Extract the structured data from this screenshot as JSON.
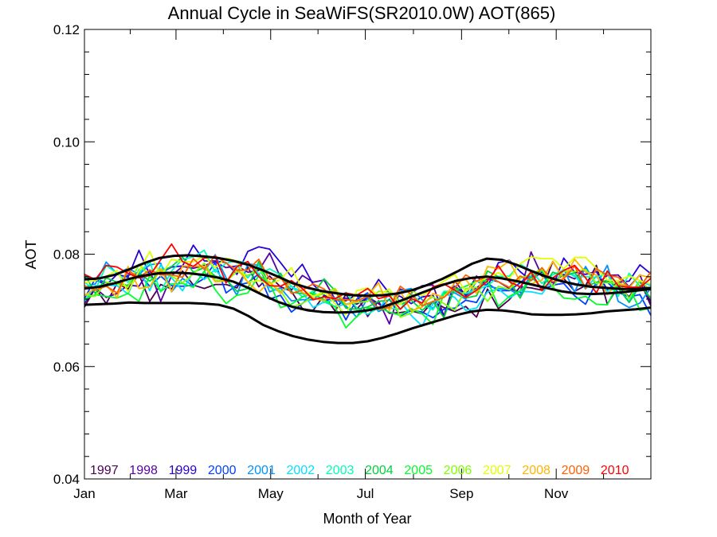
{
  "chart_data": {
    "type": "line",
    "title": "Annual Cycle in SeaWiFS(SR2010.0W) AOT(865)",
    "xlabel": "Month of Year",
    "ylabel": "AOT",
    "xlim": [
      1,
      366
    ],
    "ylim": [
      0.04,
      0.12
    ],
    "x_ticks": [
      {
        "day": 1,
        "label": "Jan"
      },
      {
        "day": 60,
        "label": "Mar"
      },
      {
        "day": 121,
        "label": "May"
      },
      {
        "day": 182,
        "label": "Jul"
      },
      {
        "day": 244,
        "label": "Sep"
      },
      {
        "day": 305,
        "label": "Nov"
      }
    ],
    "y_ticks": [
      {
        "value": 0.04,
        "label": "0.04"
      },
      {
        "value": 0.06,
        "label": "0.06"
      },
      {
        "value": 0.08,
        "label": "0.08"
      },
      {
        "value": 0.1,
        "label": "0.10"
      },
      {
        "value": 0.12,
        "label": "0.12"
      }
    ],
    "grid": false,
    "legend_position": "bottom",
    "series": [
      {
        "name": "1997",
        "color": "#4b0055",
        "values": [
          0.0706,
          0.074,
          0.0712,
          0.0748,
          0.0738,
          0.0764,
          0.0716,
          0.0746,
          0.0738,
          0.077,
          0.0745,
          0.0739,
          0.0746,
          0.0746,
          0.074,
          0.0777,
          0.0742,
          0.0761,
          0.0742,
          0.0734,
          0.0703,
          0.07,
          0.0727,
          0.0699,
          0.0728,
          0.0702,
          0.0724,
          0.0712,
          0.0695,
          0.0696,
          0.0699,
          0.0694,
          0.0716,
          0.0705,
          0.0698,
          0.0707,
          0.0688,
          0.0738,
          0.0703,
          0.0719,
          0.0742,
          0.074,
          0.0736,
          0.0787,
          0.0757,
          0.0734,
          0.0744,
          0.078,
          0.0711,
          0.0743,
          0.0724,
          0.0753,
          0.0708
        ]
      },
      {
        "name": "1998",
        "color": "#5a00a0",
        "values": [
          0.0712,
          0.074,
          0.0723,
          0.073,
          0.0745,
          0.0743,
          0.0772,
          0.0716,
          0.0762,
          0.0778,
          0.0775,
          0.078,
          0.0786,
          0.0776,
          0.0779,
          0.0768,
          0.0771,
          0.0802,
          0.0759,
          0.0736,
          0.0762,
          0.075,
          0.0754,
          0.072,
          0.0717,
          0.0728,
          0.0689,
          0.0717,
          0.0676,
          0.0738,
          0.0731,
          0.0744,
          0.0745,
          0.069,
          0.0753,
          0.0726,
          0.074,
          0.0756,
          0.0751,
          0.0739,
          0.0732,
          0.0804,
          0.0761,
          0.0749,
          0.0764,
          0.0756,
          0.0776,
          0.0746,
          0.0762,
          0.0763,
          0.0742,
          0.0763,
          0.0713
        ]
      },
      {
        "name": "1999",
        "color": "#2a00d6",
        "values": [
          0.0759,
          0.0755,
          0.0745,
          0.0764,
          0.0759,
          0.0807,
          0.0763,
          0.0767,
          0.0777,
          0.0779,
          0.0816,
          0.0788,
          0.0788,
          0.0785,
          0.0764,
          0.0805,
          0.0813,
          0.0809,
          0.0785,
          0.076,
          0.0782,
          0.0746,
          0.0727,
          0.0717,
          0.0722,
          0.0711,
          0.0723,
          0.0755,
          0.073,
          0.0725,
          0.0712,
          0.0724,
          0.0727,
          0.0688,
          0.0743,
          0.0728,
          0.0761,
          0.0742,
          0.0785,
          0.0789,
          0.0769,
          0.0753,
          0.0769,
          0.0742,
          0.0793,
          0.0768,
          0.0764,
          0.0769,
          0.0737,
          0.075,
          0.0752,
          0.0781,
          0.0765
        ]
      },
      {
        "name": "2000",
        "color": "#0040ff",
        "values": [
          0.0721,
          0.0757,
          0.0749,
          0.0748,
          0.0763,
          0.0765,
          0.0743,
          0.0761,
          0.0744,
          0.0743,
          0.0745,
          0.0757,
          0.0785,
          0.0731,
          0.0745,
          0.0749,
          0.0765,
          0.072,
          0.0727,
          0.0697,
          0.0712,
          0.0729,
          0.0719,
          0.072,
          0.0683,
          0.072,
          0.0731,
          0.0702,
          0.072,
          0.069,
          0.07,
          0.0697,
          0.0687,
          0.0702,
          0.0704,
          0.0718,
          0.0714,
          0.0748,
          0.0735,
          0.0735,
          0.0749,
          0.0765,
          0.0736,
          0.0745,
          0.0748,
          0.0726,
          0.0711,
          0.075,
          0.075,
          0.0732,
          0.0724,
          0.0728,
          0.0691
        ]
      },
      {
        "name": "2001",
        "color": "#0090ff",
        "values": [
          0.0741,
          0.0747,
          0.0786,
          0.0765,
          0.0775,
          0.0764,
          0.0781,
          0.0784,
          0.0733,
          0.0757,
          0.0743,
          0.0769,
          0.0799,
          0.0758,
          0.0727,
          0.0783,
          0.078,
          0.0733,
          0.074,
          0.0717,
          0.0719,
          0.0719,
          0.0736,
          0.0721,
          0.0708,
          0.0688,
          0.0722,
          0.0698,
          0.0707,
          0.0735,
          0.0739,
          0.0719,
          0.0703,
          0.0732,
          0.0731,
          0.072,
          0.0752,
          0.0743,
          0.0739,
          0.0737,
          0.0727,
          0.0766,
          0.0763,
          0.0741,
          0.0774,
          0.0732,
          0.0778,
          0.0745,
          0.078,
          0.0716,
          0.0705,
          0.0713,
          0.074
        ]
      },
      {
        "name": "2002",
        "color": "#00e0ff",
        "values": [
          0.0716,
          0.0744,
          0.0745,
          0.0744,
          0.0729,
          0.0773,
          0.0735,
          0.0781,
          0.0758,
          0.0735,
          0.0769,
          0.0755,
          0.0773,
          0.075,
          0.078,
          0.0758,
          0.0781,
          0.0741,
          0.0733,
          0.0743,
          0.0732,
          0.0705,
          0.0715,
          0.0707,
          0.0711,
          0.0716,
          0.0725,
          0.07,
          0.0732,
          0.0716,
          0.0691,
          0.0672,
          0.0712,
          0.073,
          0.0723,
          0.07,
          0.0704,
          0.0733,
          0.0738,
          0.0722,
          0.0734,
          0.0733,
          0.0729,
          0.0757,
          0.0772,
          0.0762,
          0.0738,
          0.0761,
          0.0734,
          0.0739,
          0.0716,
          0.0752,
          0.0744
        ]
      },
      {
        "name": "2003",
        "color": "#00ffb4",
        "values": [
          0.075,
          0.0736,
          0.078,
          0.0766,
          0.075,
          0.0767,
          0.0786,
          0.0733,
          0.077,
          0.0791,
          0.0795,
          0.0807,
          0.0768,
          0.0784,
          0.0788,
          0.0784,
          0.0765,
          0.0774,
          0.0763,
          0.0743,
          0.0724,
          0.0734,
          0.0714,
          0.0719,
          0.0732,
          0.0704,
          0.0693,
          0.0705,
          0.0704,
          0.0702,
          0.073,
          0.0711,
          0.0701,
          0.0734,
          0.0733,
          0.073,
          0.0737,
          0.0744,
          0.076,
          0.0761,
          0.0782,
          0.0771,
          0.0748,
          0.0763,
          0.0772,
          0.076,
          0.076,
          0.0759,
          0.0766,
          0.0725,
          0.0766,
          0.0743,
          0.0768
        ]
      },
      {
        "name": "2004",
        "color": "#00d040",
        "values": [
          0.0765,
          0.073,
          0.0758,
          0.075,
          0.0744,
          0.0767,
          0.0752,
          0.0769,
          0.0778,
          0.0795,
          0.0768,
          0.0776,
          0.0761,
          0.0755,
          0.0734,
          0.0739,
          0.0787,
          0.0744,
          0.0766,
          0.0732,
          0.073,
          0.073,
          0.0756,
          0.0735,
          0.0704,
          0.0702,
          0.0706,
          0.0716,
          0.0718,
          0.0711,
          0.0718,
          0.07,
          0.0716,
          0.0687,
          0.0741,
          0.0722,
          0.0726,
          0.077,
          0.076,
          0.0753,
          0.0722,
          0.076,
          0.074,
          0.0768,
          0.0761,
          0.0767,
          0.0742,
          0.075,
          0.0753,
          0.074,
          0.0714,
          0.0744,
          0.0722
        ]
      },
      {
        "name": "2005",
        "color": "#00ff2a",
        "values": [
          0.072,
          0.0728,
          0.0725,
          0.0722,
          0.073,
          0.0716,
          0.0762,
          0.0734,
          0.0747,
          0.0748,
          0.0741,
          0.077,
          0.0737,
          0.0712,
          0.0727,
          0.0731,
          0.0762,
          0.0749,
          0.0705,
          0.0711,
          0.0724,
          0.0729,
          0.0719,
          0.0706,
          0.0669,
          0.0689,
          0.0704,
          0.0705,
          0.0697,
          0.0691,
          0.0703,
          0.0694,
          0.0675,
          0.073,
          0.0736,
          0.0743,
          0.0752,
          0.0753,
          0.0707,
          0.0725,
          0.0735,
          0.0754,
          0.0771,
          0.0742,
          0.0722,
          0.072,
          0.0725,
          0.0711,
          0.071,
          0.0748,
          0.0742,
          0.07,
          0.0704
        ]
      },
      {
        "name": "2006",
        "color": "#80ff00",
        "values": [
          0.0728,
          0.0725,
          0.075,
          0.0747,
          0.0742,
          0.0782,
          0.0761,
          0.0774,
          0.0761,
          0.0749,
          0.0765,
          0.0784,
          0.0754,
          0.0752,
          0.0769,
          0.0762,
          0.0775,
          0.0747,
          0.0735,
          0.0706,
          0.0712,
          0.0725,
          0.0729,
          0.0739,
          0.0711,
          0.0714,
          0.0716,
          0.0734,
          0.0732,
          0.0688,
          0.0695,
          0.0713,
          0.0724,
          0.0712,
          0.07,
          0.0739,
          0.0741,
          0.0716,
          0.0743,
          0.0737,
          0.0757,
          0.0764,
          0.0774,
          0.0742,
          0.077,
          0.0769,
          0.0773,
          0.0748,
          0.0749,
          0.0749,
          0.0721,
          0.0753,
          0.0735
        ]
      },
      {
        "name": "2007",
        "color": "#e0ff00",
        "values": [
          0.0749,
          0.0753,
          0.0761,
          0.0771,
          0.0733,
          0.077,
          0.0805,
          0.0761,
          0.0791,
          0.0786,
          0.0787,
          0.0796,
          0.0776,
          0.0793,
          0.0788,
          0.075,
          0.0753,
          0.0746,
          0.0755,
          0.0776,
          0.0738,
          0.0725,
          0.0733,
          0.0712,
          0.0692,
          0.0735,
          0.074,
          0.0727,
          0.0738,
          0.071,
          0.0734,
          0.0726,
          0.0739,
          0.0752,
          0.0764,
          0.0733,
          0.0751,
          0.0758,
          0.0767,
          0.0757,
          0.0783,
          0.0795,
          0.0792,
          0.0792,
          0.0774,
          0.0794,
          0.0794,
          0.0775,
          0.0754,
          0.0753,
          0.0761,
          0.0753,
          0.0747
        ]
      },
      {
        "name": "2008",
        "color": "#ffb400",
        "values": [
          0.0726,
          0.074,
          0.0745,
          0.0723,
          0.0778,
          0.0739,
          0.0742,
          0.0774,
          0.0733,
          0.0779,
          0.0779,
          0.0778,
          0.0751,
          0.0752,
          0.0775,
          0.075,
          0.0732,
          0.0751,
          0.073,
          0.0752,
          0.0732,
          0.0722,
          0.0717,
          0.0737,
          0.071,
          0.0716,
          0.0726,
          0.0749,
          0.07,
          0.0734,
          0.0699,
          0.0706,
          0.073,
          0.0723,
          0.0749,
          0.0755,
          0.073,
          0.0778,
          0.0774,
          0.0788,
          0.0751,
          0.0747,
          0.0754,
          0.0787,
          0.0756,
          0.0791,
          0.0768,
          0.0763,
          0.0728,
          0.075,
          0.074,
          0.0763,
          0.0758
        ]
      },
      {
        "name": "2009",
        "color": "#ff6000",
        "values": [
          0.0744,
          0.0736,
          0.0743,
          0.0731,
          0.0771,
          0.0759,
          0.0772,
          0.0763,
          0.0763,
          0.0759,
          0.0792,
          0.0773,
          0.0797,
          0.0784,
          0.0771,
          0.0772,
          0.0791,
          0.0755,
          0.0759,
          0.073,
          0.0736,
          0.0747,
          0.0738,
          0.0719,
          0.0719,
          0.0717,
          0.0725,
          0.0702,
          0.0705,
          0.0743,
          0.0728,
          0.0708,
          0.0716,
          0.0723,
          0.074,
          0.0763,
          0.0752,
          0.0761,
          0.0751,
          0.0741,
          0.0761,
          0.0753,
          0.0776,
          0.0751,
          0.0756,
          0.0779,
          0.0739,
          0.0774,
          0.0763,
          0.0759,
          0.0741,
          0.0741,
          0.0769
        ]
      },
      {
        "name": "2010",
        "color": "#ff0000",
        "values": [
          0.0764,
          0.0755,
          0.078,
          0.0777,
          0.0766,
          0.0758,
          0.0762,
          0.079,
          0.0818,
          0.0787,
          0.0778,
          0.0793,
          0.0796,
          0.0749,
          0.0778,
          0.0787,
          0.076,
          0.0744,
          0.0743,
          0.0753,
          0.0739,
          0.0719,
          0.0724,
          0.0721,
          0.0731,
          0.0727,
          0.0739,
          0.0721,
          0.0726,
          0.0702,
          0.0721,
          0.0713,
          0.0742,
          0.0747,
          0.0736,
          0.0723,
          0.0736,
          0.0752,
          0.0779,
          0.0751,
          0.0742,
          0.0769,
          0.0735,
          0.0758,
          0.0771,
          0.078,
          0.0758,
          0.0731,
          0.077,
          0.0744,
          0.0741,
          0.0741,
          0.0757
        ]
      },
      {
        "name": "",
        "color": "#000000",
        "values": [
          0.0755,
          0.0757,
          0.0763,
          0.0773,
          0.0784,
          0.0793,
          0.0797,
          0.0798,
          0.0796,
          0.0793,
          0.0788,
          0.0781,
          0.0771,
          0.076,
          0.0748,
          0.074,
          0.0734,
          0.073,
          0.0727,
          0.0726,
          0.0727,
          0.073,
          0.0736,
          0.0745,
          0.0756,
          0.0769,
          0.0783,
          0.0792,
          0.079,
          0.0781,
          0.077,
          0.076,
          0.0752,
          0.0746,
          0.0742,
          0.074,
          0.0738,
          0.0738,
          0.074
        ]
      },
      {
        "name": "",
        "color": "#000000",
        "values": [
          0.0739,
          0.0742,
          0.0748,
          0.0756,
          0.0762,
          0.0766,
          0.0767,
          0.0766,
          0.0763,
          0.0758,
          0.0751,
          0.074,
          0.0727,
          0.0715,
          0.0706,
          0.07,
          0.0697,
          0.0696,
          0.0697,
          0.07,
          0.0706,
          0.0715,
          0.0725,
          0.0735,
          0.0745,
          0.0753,
          0.0758,
          0.076,
          0.0757,
          0.0752,
          0.0746,
          0.074,
          0.0734,
          0.073,
          0.0729,
          0.073,
          0.0732,
          0.0735,
          0.0738
        ]
      },
      {
        "name": "",
        "color": "#000000",
        "values": [
          0.071,
          0.0711,
          0.0712,
          0.0714,
          0.0713,
          0.0713,
          0.0713,
          0.0713,
          0.0712,
          0.071,
          0.0703,
          0.069,
          0.0674,
          0.0663,
          0.0654,
          0.0648,
          0.0644,
          0.0642,
          0.0642,
          0.0645,
          0.0651,
          0.0659,
          0.0668,
          0.0676,
          0.0684,
          0.0692,
          0.0698,
          0.0701,
          0.07,
          0.0697,
          0.0693,
          0.0692,
          0.0692,
          0.0693,
          0.0695,
          0.0698,
          0.07,
          0.0702,
          0.0705
        ]
      }
    ]
  }
}
